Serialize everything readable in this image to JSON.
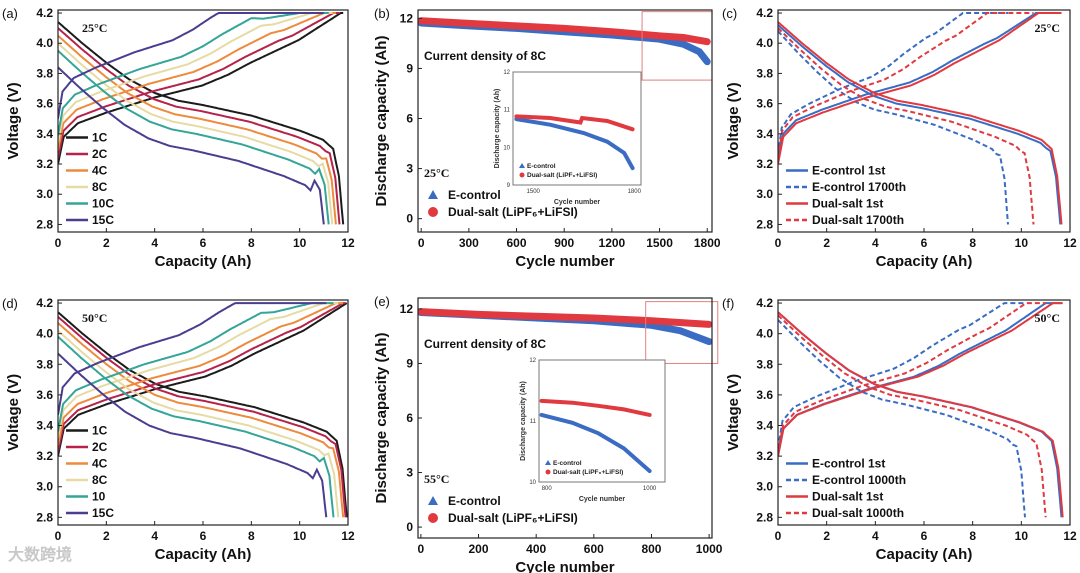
{
  "watermark": "大数跨境",
  "chart_data": [
    {
      "id": "a",
      "panel_label": "(a)",
      "type": "line",
      "kind": "voltage",
      "annotation": "25°C",
      "annotation_pos": "top-left",
      "xlabel": "Capacity (Ah)",
      "ylabel": "Voltage (V)",
      "xlim": [
        0,
        12
      ],
      "ylim": [
        2.75,
        4.22
      ],
      "xticks": [
        0,
        2,
        4,
        6,
        8,
        10,
        12
      ],
      "yticks": [
        2.8,
        3.0,
        3.2,
        3.4,
        3.6,
        3.8,
        4.0,
        4.2
      ],
      "legend_position": "bottom-left",
      "series": [
        {
          "name": "1C",
          "color": "#1b1b1b",
          "dash": false,
          "capacity_end": 11.8,
          "charge_full_at": 11.7,
          "polarization_v": 0.0
        },
        {
          "name": "2C",
          "color": "#b5234b",
          "dash": false,
          "capacity_end": 11.65,
          "charge_full_at": 11.4,
          "polarization_v": 0.04
        },
        {
          "name": "4C",
          "color": "#ee8a3c",
          "dash": false,
          "capacity_end": 11.5,
          "charge_full_at": 11.0,
          "polarization_v": 0.09
        },
        {
          "name": "8C",
          "color": "#e6dba3",
          "dash": false,
          "capacity_end": 11.35,
          "charge_full_at": 10.5,
          "polarization_v": 0.14
        },
        {
          "name": "10C",
          "color": "#34a597",
          "dash": false,
          "capacity_end": 11.2,
          "charge_full_at": 10.0,
          "polarization_v": 0.19
        },
        {
          "name": "15C",
          "color": "#4b3d8f",
          "dash": false,
          "capacity_end": 11.0,
          "charge_full_at": 9.3,
          "polarization_v": 0.3
        }
      ]
    },
    {
      "id": "b",
      "panel_label": "(b)",
      "type": "scatter",
      "kind": "cycle",
      "annotation": "25°C",
      "annotation2": "Current density of 8C",
      "xlabel": "Cycle number",
      "ylabel": "Discharge capacity (Ah)",
      "xlim": [
        -20,
        1830
      ],
      "ylim": [
        -0.8,
        12.5
      ],
      "xticks": [
        0,
        300,
        600,
        900,
        1200,
        1500,
        1800
      ],
      "yticks": [
        0,
        3,
        6,
        9,
        12
      ],
      "legend_position": "bottom-left",
      "zoom_region": {
        "x": [
          1390,
          1830
        ],
        "y": [
          8.3,
          12.4
        ]
      },
      "series": [
        {
          "name": "E-control",
          "color": "#3a6cc4",
          "marker": "triangle",
          "points": [
            [
              0,
              11.72
            ],
            [
              300,
              11.55
            ],
            [
              600,
              11.4
            ],
            [
              900,
              11.2
            ],
            [
              1200,
              11.0
            ],
            [
              1500,
              10.75
            ],
            [
              1650,
              10.45
            ],
            [
              1750,
              10.0
            ],
            [
              1800,
              9.4
            ]
          ]
        },
        {
          "name": "Dual-salt (LiPF₆+LiFSI)",
          "color": "#e0393f",
          "marker": "circle",
          "points": [
            [
              0,
              11.85
            ],
            [
              300,
              11.7
            ],
            [
              600,
              11.55
            ],
            [
              900,
              11.4
            ],
            [
              1200,
              11.2
            ],
            [
              1500,
              10.95
            ],
            [
              1650,
              10.85
            ],
            [
              1800,
              10.6
            ]
          ]
        }
      ],
      "inset": {
        "xlabel": "Cycle number",
        "ylabel": "Discharge capacity (Ah)",
        "xlim": [
          1440,
          1820
        ],
        "ylim": [
          9,
          12
        ],
        "xticks": [
          1500,
          1800
        ],
        "yticks": [
          9,
          10,
          11,
          12
        ],
        "series": [
          {
            "name": "E-control",
            "color": "#3a6cc4",
            "points": [
              [
                1450,
                10.75
              ],
              [
                1550,
                10.6
              ],
              [
                1650,
                10.38
              ],
              [
                1720,
                10.15
              ],
              [
                1770,
                9.85
              ],
              [
                1795,
                9.45
              ]
            ]
          },
          {
            "name": "Dual-salt (LiPF₆+LiFSI)",
            "color": "#e0393f",
            "points": [
              [
                1450,
                10.82
              ],
              [
                1550,
                10.78
              ],
              [
                1640,
                10.66
              ],
              [
                1645,
                10.78
              ],
              [
                1720,
                10.7
              ],
              [
                1795,
                10.48
              ]
            ]
          }
        ]
      }
    },
    {
      "id": "c",
      "panel_label": "(c)",
      "type": "line",
      "kind": "voltage",
      "annotation": "25°C",
      "annotation_pos": "top-right",
      "xlabel": "Capacity (Ah)",
      "ylabel": "Voltage (V)",
      "xlim": [
        0,
        12
      ],
      "ylim": [
        2.75,
        4.22
      ],
      "xticks": [
        0,
        2,
        4,
        6,
        8,
        10,
        12
      ],
      "yticks": [
        2.8,
        3.0,
        3.2,
        3.4,
        3.6,
        3.8,
        4.0,
        4.2
      ],
      "legend_position": "bottom-left",
      "series": [
        {
          "name": "E-control 1st",
          "color": "#3a6cc4",
          "dash": false,
          "capacity_end": 11.6,
          "charge_full_at": 10.6,
          "polarization_v": 0.02
        },
        {
          "name": "E-control 1700th",
          "color": "#3a6cc4",
          "dash": true,
          "capacity_end": 9.45,
          "charge_full_at": 7.6,
          "polarization_v": 0.06
        },
        {
          "name": "Dual-salt 1st",
          "color": "#e0393f",
          "dash": false,
          "capacity_end": 11.65,
          "charge_full_at": 10.7,
          "polarization_v": 0.0
        },
        {
          "name": "Dual-salt 1700th",
          "color": "#e0393f",
          "dash": true,
          "capacity_end": 10.5,
          "charge_full_at": 8.6,
          "polarization_v": 0.04
        }
      ]
    },
    {
      "id": "d",
      "panel_label": "(d)",
      "type": "line",
      "kind": "voltage",
      "annotation": "50°C",
      "annotation_pos": "top-left",
      "xlabel": "Capacity (Ah)",
      "ylabel": "Voltage (V)",
      "xlim": [
        0,
        12
      ],
      "ylim": [
        2.75,
        4.22
      ],
      "xticks": [
        0,
        2,
        4,
        6,
        8,
        10,
        12
      ],
      "yticks": [
        2.8,
        3.0,
        3.2,
        3.4,
        3.6,
        3.8,
        4.0,
        4.2
      ],
      "legend_position": "bottom-left",
      "series": [
        {
          "name": "1C",
          "color": "#1b1b1b",
          "dash": false,
          "capacity_end": 11.95,
          "charge_full_at": 11.95,
          "polarization_v": 0.0
        },
        {
          "name": "2C",
          "color": "#b5234b",
          "dash": false,
          "capacity_end": 11.9,
          "charge_full_at": 11.8,
          "polarization_v": 0.03
        },
        {
          "name": "4C",
          "color": "#ee8a3c",
          "dash": false,
          "capacity_end": 11.8,
          "charge_full_at": 11.5,
          "polarization_v": 0.07
        },
        {
          "name": "8C",
          "color": "#e6dba3",
          "dash": false,
          "capacity_end": 11.6,
          "charge_full_at": 11.0,
          "polarization_v": 0.12
        },
        {
          "name": "10",
          "color": "#34a597",
          "dash": false,
          "capacity_end": 11.4,
          "charge_full_at": 10.5,
          "polarization_v": 0.16
        },
        {
          "name": "15C",
          "color": "#4b3d8f",
          "dash": false,
          "capacity_end": 11.1,
          "charge_full_at": 9.8,
          "polarization_v": 0.27
        }
      ]
    },
    {
      "id": "e",
      "panel_label": "(e)",
      "type": "scatter",
      "kind": "cycle",
      "annotation": "55°C",
      "annotation2": "Current density of 8C",
      "xlabel": "Cycle number",
      "ylabel": "Discharge capacity (Ah)",
      "xlim": [
        -10,
        1010
      ],
      "ylim": [
        -0.6,
        12.6
      ],
      "xticks": [
        0,
        200,
        400,
        600,
        800,
        1000
      ],
      "yticks": [
        0,
        3,
        6,
        9,
        12
      ],
      "legend_position": "bottom-left",
      "zoom_region": {
        "x": [
          780,
          1030
        ],
        "y": [
          9.0,
          12.4
        ]
      },
      "series": [
        {
          "name": "E-control",
          "color": "#3a6cc4",
          "marker": "triangle",
          "points": [
            [
              0,
              11.8
            ],
            [
              200,
              11.65
            ],
            [
              400,
              11.5
            ],
            [
              600,
              11.35
            ],
            [
              800,
              11.1
            ],
            [
              900,
              10.8
            ],
            [
              1000,
              10.2
            ]
          ]
        },
        {
          "name": "Dual-salt (LiPF₆+LiFSI)",
          "color": "#e0393f",
          "marker": "circle",
          "points": [
            [
              0,
              11.85
            ],
            [
              200,
              11.7
            ],
            [
              400,
              11.6
            ],
            [
              600,
              11.5
            ],
            [
              800,
              11.35
            ],
            [
              1000,
              11.15
            ]
          ]
        }
      ],
      "inset": {
        "xlabel": "Cycle number",
        "ylabel": "Discharge capacity (Ah)",
        "xlim": [
          785,
          1030
        ],
        "ylim": [
          10,
          12
        ],
        "xticks": [
          800,
          1000
        ],
        "yticks": [
          10,
          11,
          12
        ],
        "series": [
          {
            "name": "E-control",
            "color": "#3a6cc4",
            "points": [
              [
                790,
                11.1
              ],
              [
                850,
                10.97
              ],
              [
                900,
                10.8
              ],
              [
                950,
                10.55
              ],
              [
                1000,
                10.18
              ]
            ]
          },
          {
            "name": "Dual-salt (LiPF₆+LiFSI)",
            "color": "#e0393f",
            "points": [
              [
                790,
                11.33
              ],
              [
                850,
                11.3
              ],
              [
                900,
                11.25
              ],
              [
                950,
                11.19
              ],
              [
                1000,
                11.1
              ]
            ]
          }
        ]
      }
    },
    {
      "id": "f",
      "panel_label": "(f)",
      "type": "line",
      "kind": "voltage",
      "annotation": "50°C",
      "annotation_pos": "top-right",
      "xlabel": "Capacity (Ah)",
      "ylabel": "Voltage (V)",
      "xlim": [
        0,
        12
      ],
      "ylim": [
        2.75,
        4.22
      ],
      "xticks": [
        0,
        2,
        4,
        6,
        8,
        10,
        12
      ],
      "yticks": [
        2.8,
        3.0,
        3.2,
        3.4,
        3.6,
        3.8,
        4.0,
        4.2
      ],
      "legend_position": "bottom-left",
      "series": [
        {
          "name": "E-control 1st",
          "color": "#3a6cc4",
          "dash": false,
          "capacity_end": 11.65,
          "charge_full_at": 11.0,
          "polarization_v": 0.0
        },
        {
          "name": "E-control 1000th",
          "color": "#3a6cc4",
          "dash": true,
          "capacity_end": 10.15,
          "charge_full_at": 9.3,
          "polarization_v": 0.05
        },
        {
          "name": "Dual-salt 1st",
          "color": "#e0393f",
          "dash": false,
          "capacity_end": 11.7,
          "charge_full_at": 11.3,
          "polarization_v": 0.0
        },
        {
          "name": "Dual-salt 1000th",
          "color": "#e0393f",
          "dash": true,
          "capacity_end": 11.0,
          "charge_full_at": 10.2,
          "polarization_v": 0.02
        }
      ]
    }
  ]
}
